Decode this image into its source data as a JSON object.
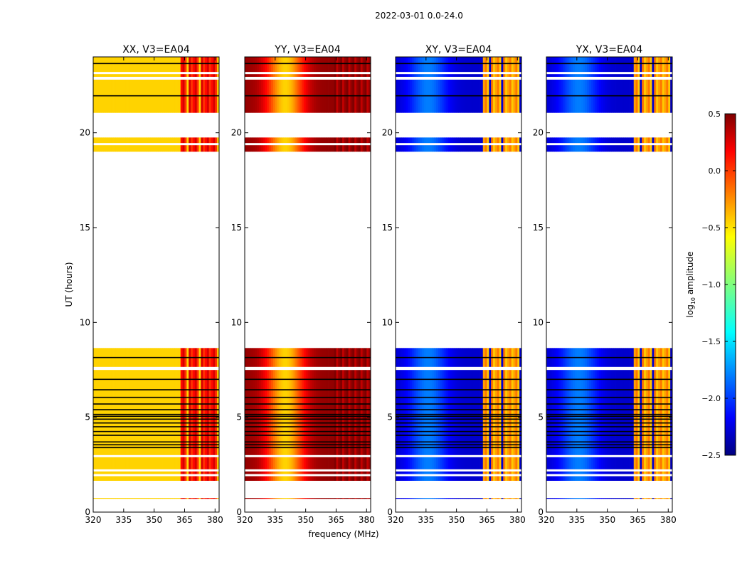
{
  "suptitle": "2022-03-01 0.0-24.0",
  "xlabel": "frequency (MHz)",
  "ylabel": "UT (hours)",
  "colorbar": {
    "label": "log10 amplitude",
    "label_main": "log",
    "label_sub": "10",
    "label_rest": " amplitude",
    "range": [
      -2.5,
      0.5
    ],
    "ticks": [
      "0.5",
      "0.0",
      "−0.5",
      "−1.0",
      "−1.5",
      "−2.0",
      "−2.5"
    ],
    "tick_values": [
      0.5,
      0.0,
      -0.5,
      -1.0,
      -1.5,
      -2.0,
      -2.5
    ],
    "colormap": "jet"
  },
  "chart_data": {
    "type": "heatmap",
    "xlim": [
      320,
      382
    ],
    "ylim": [
      0,
      24
    ],
    "x_ticks": [
      "320",
      "335",
      "350",
      "365",
      "380"
    ],
    "x_tick_values": [
      320,
      335,
      350,
      365,
      380
    ],
    "y_ticks": [
      "0",
      "5",
      "10",
      "15",
      "20"
    ],
    "y_tick_values": [
      0,
      5,
      10,
      15,
      20
    ],
    "data_blocks_ut": [
      [
        0.7,
        0.75
      ],
      [
        1.65,
        8.65
      ],
      [
        19.0,
        19.75
      ],
      [
        21.05,
        22.8
      ],
      [
        22.95,
        24.0
      ]
    ],
    "white_gaps_ut": [
      1.95,
      2.2,
      2.95,
      7.55,
      7.6,
      19.4,
      23.15
    ],
    "black_lines_ut": [
      3.4,
      3.55,
      3.7,
      4.05,
      4.25,
      4.5,
      4.7,
      4.9,
      5.05,
      5.15,
      5.4,
      5.7,
      6.05,
      6.45,
      7.0,
      8.15,
      21.95,
      23.65
    ],
    "rfi_channels_mhz": [
      [
        363,
        366
      ],
      [
        367,
        372
      ],
      [
        373.5,
        376.5
      ],
      [
        377.5,
        381
      ]
    ],
    "panels": [
      {
        "title": "XX, V3=EA04",
        "baseline": -0.45,
        "bump": 0.0,
        "bump_center": 336,
        "rfi_level": 0.15
      },
      {
        "title": "YY, V3=EA04",
        "baseline": 0.45,
        "bump": -0.9,
        "bump_center": 340,
        "rfi_level": 0.45
      },
      {
        "title": "XY, V3=EA04",
        "baseline": -2.3,
        "bump": 0.5,
        "bump_center": 336,
        "rfi_level": -0.3
      },
      {
        "title": "YX, V3=EA04",
        "baseline": -2.3,
        "bump": 0.5,
        "bump_center": 336,
        "rfi_level": -0.3
      }
    ]
  }
}
